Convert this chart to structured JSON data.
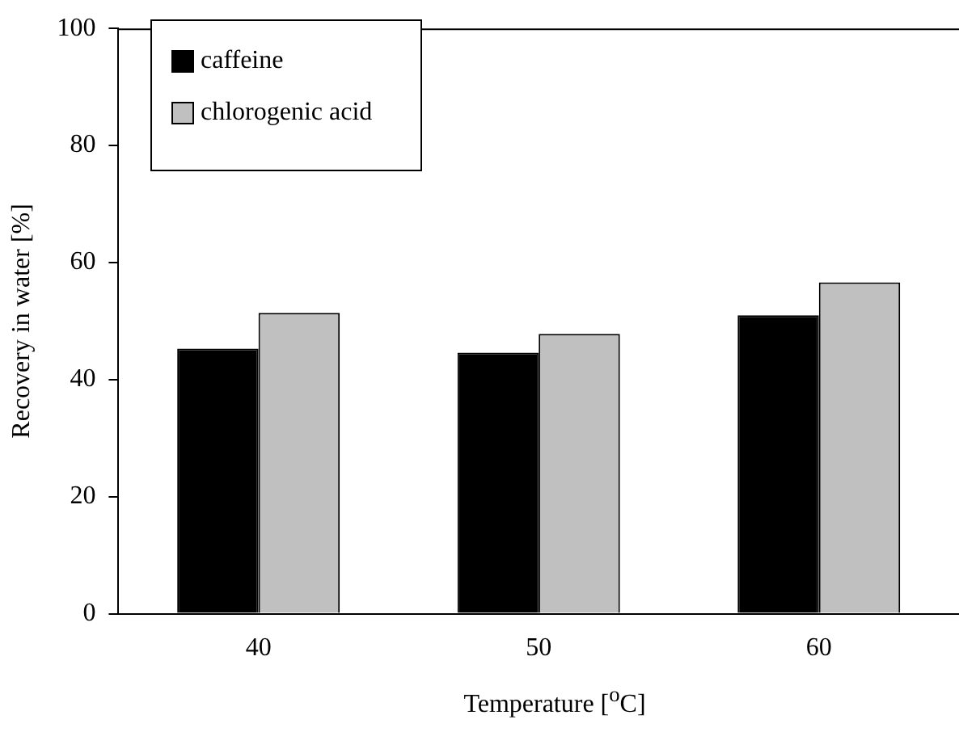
{
  "chart_data": {
    "type": "bar",
    "xlabel": "Temperature [$^{o}$C]",
    "ylabel": "Recovery in water [%]",
    "categories": [
      "40",
      "50",
      "60"
    ],
    "series": [
      {
        "name": "caffeine",
        "color": "#000000",
        "values": [
          45.3,
          44.6,
          51
        ]
      },
      {
        "name": "chlorogenic acid",
        "color": "#c0c0c0",
        "values": [
          51.4,
          47.8,
          56.6
        ]
      }
    ],
    "ylim": [
      0,
      100
    ],
    "yticks": [
      0,
      20,
      40,
      60,
      80,
      100
    ],
    "grid": false,
    "legend": "top left"
  }
}
